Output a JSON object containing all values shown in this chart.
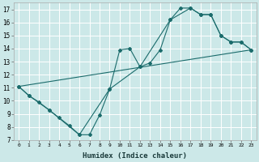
{
  "xlabel": "Humidex (Indice chaleur)",
  "bg_color": "#cce8e8",
  "grid_color": "#ffffff",
  "line_color": "#1a6b6b",
  "xlim": [
    -0.5,
    23.5
  ],
  "ylim": [
    7,
    17.5
  ],
  "xticks": [
    0,
    1,
    2,
    3,
    4,
    5,
    6,
    7,
    8,
    9,
    10,
    11,
    12,
    13,
    14,
    15,
    16,
    17,
    18,
    19,
    20,
    21,
    22,
    23
  ],
  "yticks": [
    7,
    8,
    9,
    10,
    11,
    12,
    13,
    14,
    15,
    16,
    17
  ],
  "series1_x": [
    0,
    1,
    2,
    3,
    4,
    5,
    6,
    7,
    8,
    9,
    10,
    11,
    12,
    13,
    14,
    15,
    16,
    17,
    18,
    19,
    20,
    21,
    22,
    23
  ],
  "series1_y": [
    11.1,
    10.4,
    9.9,
    9.3,
    8.7,
    8.1,
    7.4,
    7.4,
    8.9,
    10.9,
    13.9,
    14.0,
    12.6,
    12.9,
    13.9,
    16.2,
    17.1,
    17.1,
    16.6,
    16.6,
    15.0,
    14.5,
    14.5,
    13.9
  ],
  "series2_x": [
    0,
    1,
    3,
    6,
    9,
    12,
    15,
    17,
    18,
    19,
    20,
    21,
    22,
    23
  ],
  "series2_y": [
    11.1,
    10.4,
    9.3,
    7.4,
    10.9,
    12.6,
    16.2,
    17.1,
    16.6,
    16.6,
    15.0,
    14.5,
    14.5,
    13.9
  ],
  "series3_x": [
    0,
    23
  ],
  "series3_y": [
    11.1,
    13.9
  ]
}
